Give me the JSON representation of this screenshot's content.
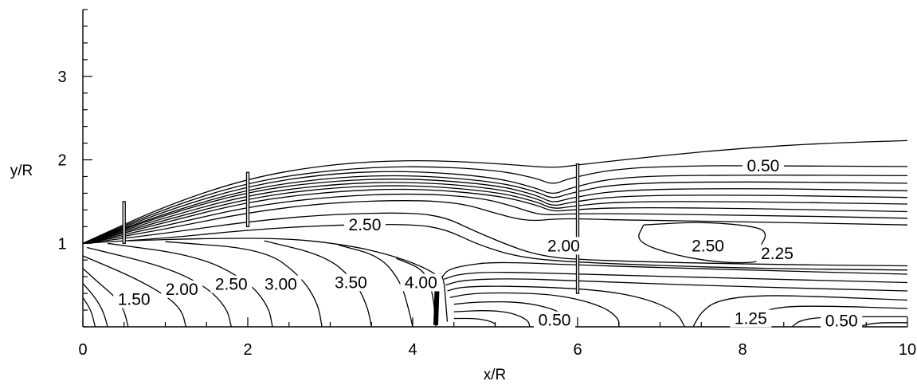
{
  "chart_data": {
    "type": "contour",
    "xlabel": "x/R",
    "ylabel": "y/R",
    "xlim": [
      0,
      10
    ],
    "ylim": [
      0,
      3.8
    ],
    "x_ticks": [
      0,
      2,
      4,
      6,
      8,
      10
    ],
    "y_ticks": [
      1,
      2,
      3
    ],
    "x_tick_labels": [
      "0",
      "2",
      "4",
      "6",
      "8",
      "10"
    ],
    "y_tick_labels": [
      "1",
      "2",
      "3"
    ],
    "grid": false,
    "contour_labels": [
      {
        "text": "0.50",
        "x": 8.25,
        "y": 1.93
      },
      {
        "text": "2.50",
        "x": 3.42,
        "y": 1.22
      },
      {
        "text": "2.00",
        "x": 5.83,
        "y": 0.97
      },
      {
        "text": "2.50",
        "x": 7.58,
        "y": 0.97
      },
      {
        "text": "2.25",
        "x": 8.42,
        "y": 0.88
      },
      {
        "text": "1.50",
        "x": 0.62,
        "y": 0.33
      },
      {
        "text": "2.00",
        "x": 1.2,
        "y": 0.45
      },
      {
        "text": "2.50",
        "x": 1.8,
        "y": 0.51
      },
      {
        "text": "3.00",
        "x": 2.4,
        "y": 0.51
      },
      {
        "text": "3.50",
        "x": 3.25,
        "y": 0.53
      },
      {
        "text": "4.00",
        "x": 4.1,
        "y": 0.53
      },
      {
        "text": "0.50",
        "x": 5.72,
        "y": 0.08
      },
      {
        "text": "1.25",
        "x": 8.1,
        "y": 0.1
      },
      {
        "text": "0.50",
        "x": 9.2,
        "y": 0.07
      }
    ],
    "contour_lines": [
      [
        [
          0,
          1
        ],
        [
          1,
          1.45
        ],
        [
          2,
          1.78
        ],
        [
          3,
          1.95
        ],
        [
          4,
          2.0
        ],
        [
          5,
          1.96
        ],
        [
          5.7,
          1.9
        ],
        [
          6,
          1.94
        ],
        [
          7,
          2.05
        ],
        [
          8,
          2.14
        ],
        [
          9,
          2.2
        ],
        [
          10,
          2.23
        ]
      ],
      [
        [
          0,
          1
        ],
        [
          1,
          1.42
        ],
        [
          2,
          1.73
        ],
        [
          3,
          1.88
        ],
        [
          4,
          1.93
        ],
        [
          5,
          1.88
        ],
        [
          5.5,
          1.78
        ],
        [
          5.7,
          1.7
        ],
        [
          5.9,
          1.78
        ],
        [
          6.5,
          1.9
        ],
        [
          7.5,
          1.93
        ],
        [
          8,
          1.93
        ],
        [
          10,
          1.92
        ]
      ],
      [
        [
          0,
          1
        ],
        [
          1,
          1.39
        ],
        [
          2,
          1.69
        ],
        [
          3,
          1.84
        ],
        [
          4,
          1.87
        ],
        [
          5,
          1.79
        ],
        [
          5.5,
          1.66
        ],
        [
          5.7,
          1.58
        ],
        [
          5.9,
          1.66
        ],
        [
          6.5,
          1.8
        ],
        [
          8,
          1.82
        ],
        [
          10,
          1.81
        ]
      ],
      [
        [
          0,
          1
        ],
        [
          1,
          1.36
        ],
        [
          2,
          1.65
        ],
        [
          3,
          1.79
        ],
        [
          4,
          1.82
        ],
        [
          5,
          1.74
        ],
        [
          5.5,
          1.62
        ],
        [
          5.7,
          1.53
        ],
        [
          5.9,
          1.6
        ],
        [
          6.5,
          1.72
        ],
        [
          8,
          1.74
        ],
        [
          10,
          1.72
        ]
      ],
      [
        [
          0,
          1
        ],
        [
          1,
          1.34
        ],
        [
          2,
          1.62
        ],
        [
          3,
          1.75
        ],
        [
          4,
          1.78
        ],
        [
          5,
          1.7
        ],
        [
          5.5,
          1.58
        ],
        [
          5.7,
          1.48
        ],
        [
          5.9,
          1.54
        ],
        [
          6.5,
          1.64
        ],
        [
          8,
          1.66
        ],
        [
          10,
          1.63
        ]
      ],
      [
        [
          0,
          1
        ],
        [
          1,
          1.31
        ],
        [
          2,
          1.58
        ],
        [
          3,
          1.71
        ],
        [
          4,
          1.74
        ],
        [
          5,
          1.66
        ],
        [
          5.5,
          1.54
        ],
        [
          5.7,
          1.44
        ],
        [
          5.9,
          1.49
        ],
        [
          6.5,
          1.57
        ],
        [
          8,
          1.58
        ],
        [
          10,
          1.55
        ]
      ],
      [
        [
          0,
          1
        ],
        [
          1,
          1.28
        ],
        [
          2,
          1.54
        ],
        [
          3,
          1.67
        ],
        [
          4,
          1.7
        ],
        [
          5,
          1.62
        ],
        [
          5.5,
          1.5
        ],
        [
          5.7,
          1.41
        ],
        [
          5.9,
          1.44
        ],
        [
          6.5,
          1.5
        ],
        [
          8,
          1.5
        ],
        [
          10,
          1.47
        ]
      ],
      [
        [
          0,
          1
        ],
        [
          1,
          1.25
        ],
        [
          2,
          1.5
        ],
        [
          3,
          1.62
        ],
        [
          4,
          1.66
        ],
        [
          5,
          1.58
        ],
        [
          5.5,
          1.46
        ],
        [
          5.7,
          1.38
        ],
        [
          5.9,
          1.4
        ],
        [
          6.5,
          1.43
        ],
        [
          8,
          1.42
        ],
        [
          10,
          1.38
        ]
      ],
      [
        [
          0,
          1
        ],
        [
          1,
          1.21
        ],
        [
          2,
          1.44
        ],
        [
          3,
          1.56
        ],
        [
          4,
          1.6
        ],
        [
          4.8,
          1.55
        ],
        [
          5.2,
          1.45
        ],
        [
          5.5,
          1.35
        ],
        [
          5.7,
          1.34
        ],
        [
          6,
          1.36
        ],
        [
          8,
          1.34
        ],
        [
          10,
          1.3
        ]
      ],
      [
        [
          0,
          1
        ],
        [
          1,
          1.17
        ],
        [
          2,
          1.37
        ],
        [
          3,
          1.49
        ],
        [
          4,
          1.52
        ],
        [
          4.6,
          1.48
        ],
        [
          5,
          1.36
        ],
        [
          5.4,
          1.26
        ],
        [
          5.8,
          1.3
        ],
        [
          6.5,
          1.28
        ],
        [
          8,
          1.26
        ],
        [
          10,
          1.22
        ]
      ],
      [
        [
          0,
          1
        ],
        [
          1,
          1.12
        ],
        [
          2,
          1.26
        ],
        [
          3,
          1.35
        ],
        [
          4,
          1.37
        ],
        [
          4.4,
          1.31
        ],
        [
          4.7,
          1.17
        ],
        [
          5.1,
          1.0
        ],
        [
          5.5,
          0.86
        ],
        [
          6,
          0.8
        ],
        [
          8,
          0.75
        ],
        [
          10,
          0.73
        ]
      ],
      [
        [
          0,
          1
        ],
        [
          1,
          1.06
        ],
        [
          2,
          1.16
        ],
        [
          3,
          1.22
        ],
        [
          4,
          1.23
        ],
        [
          4.4,
          1.17
        ],
        [
          4.8,
          0.98
        ],
        [
          5.3,
          0.83
        ],
        [
          6,
          0.77
        ],
        [
          8,
          0.7
        ],
        [
          10,
          0.68
        ]
      ],
      [
        [
          6.8,
          1.22
        ],
        [
          7.5,
          1.26
        ],
        [
          8.2,
          1.2
        ],
        [
          8.3,
          1.1
        ],
        [
          8.2,
          0.95
        ],
        [
          8.3,
          0.78
        ],
        [
          7.8,
          0.76
        ],
        [
          7.2,
          0.85
        ],
        [
          6.7,
          1.02
        ],
        [
          6.8,
          1.22
        ]
      ],
      [
        [
          0.55,
          1.03
        ],
        [
          1.5,
          1.06
        ],
        [
          2.5,
          1.06
        ],
        [
          3.2,
          0.98
        ],
        [
          3.7,
          0.87
        ],
        [
          4.1,
          0.73
        ],
        [
          4.33,
          0.6
        ]
      ],
      [
        [
          0,
          0.7
        ],
        [
          0.2,
          0.52
        ],
        [
          0.4,
          0.35
        ],
        [
          0.5,
          0.2
        ],
        [
          0.55,
          0
        ]
      ],
      [
        [
          0,
          0.52
        ],
        [
          0.15,
          0.35
        ],
        [
          0.25,
          0.18
        ],
        [
          0.3,
          0
        ]
      ],
      [
        [
          0,
          0.35
        ],
        [
          0.1,
          0.2
        ],
        [
          0.15,
          0
        ]
      ],
      [
        [
          0,
          0.85
        ],
        [
          0.6,
          0.6
        ],
        [
          1.0,
          0.38
        ],
        [
          1.2,
          0.2
        ],
        [
          1.25,
          0
        ]
      ],
      [
        [
          0.05,
          0.95
        ],
        [
          1.0,
          0.72
        ],
        [
          1.5,
          0.48
        ],
        [
          1.75,
          0.22
        ],
        [
          1.8,
          0
        ]
      ],
      [
        [
          0.3,
          1.0
        ],
        [
          1.4,
          0.85
        ],
        [
          2.0,
          0.55
        ],
        [
          2.25,
          0.25
        ],
        [
          2.3,
          0
        ]
      ],
      [
        [
          1.0,
          1.02
        ],
        [
          2.2,
          0.93
        ],
        [
          2.65,
          0.6
        ],
        [
          2.85,
          0.28
        ],
        [
          2.9,
          0
        ]
      ],
      [
        [
          2.2,
          1.03
        ],
        [
          2.95,
          0.85
        ],
        [
          3.3,
          0.55
        ],
        [
          3.45,
          0.25
        ],
        [
          3.5,
          0
        ]
      ],
      [
        [
          3.1,
          0.98
        ],
        [
          3.6,
          0.85
        ],
        [
          3.85,
          0.55
        ],
        [
          3.95,
          0.22
        ],
        [
          4.0,
          0
        ]
      ],
      [
        [
          3.8,
          0.82
        ],
        [
          4.15,
          0.68
        ],
        [
          4.25,
          0.38
        ],
        [
          4.28,
          0
        ]
      ],
      [
        [
          4.33,
          0.64
        ],
        [
          4.38,
          0.56
        ],
        [
          4.4,
          0.3
        ],
        [
          4.42,
          0.06
        ]
      ],
      [
        [
          4.36,
          0.6
        ],
        [
          4.42,
          0.68
        ],
        [
          4.6,
          0.73
        ],
        [
          5.0,
          0.78
        ],
        [
          6,
          0.74
        ],
        [
          8,
          0.68
        ],
        [
          10,
          0.63
        ]
      ],
      [
        [
          4.38,
          0.57
        ],
        [
          4.55,
          0.63
        ],
        [
          5.0,
          0.66
        ],
        [
          6,
          0.63
        ],
        [
          8,
          0.58
        ],
        [
          10,
          0.53
        ]
      ],
      [
        [
          4.4,
          0.5
        ],
        [
          4.6,
          0.56
        ],
        [
          5.2,
          0.58
        ],
        [
          6,
          0.55
        ],
        [
          8,
          0.48
        ],
        [
          10,
          0.43
        ]
      ],
      [
        [
          4.42,
          0.43
        ],
        [
          4.6,
          0.48
        ],
        [
          5.2,
          0.49
        ],
        [
          6.2,
          0.45
        ],
        [
          6.8,
          0.35
        ],
        [
          7.2,
          0.18
        ],
        [
          7.3,
          0
        ]
      ],
      [
        [
          4.45,
          0.35
        ],
        [
          4.7,
          0.4
        ],
        [
          5.2,
          0.41
        ],
        [
          5.8,
          0.38
        ],
        [
          6.3,
          0.25
        ],
        [
          6.5,
          0.1
        ],
        [
          6.5,
          0
        ]
      ],
      [
        [
          4.5,
          0.27
        ],
        [
          4.8,
          0.3
        ],
        [
          5.3,
          0.3
        ],
        [
          5.7,
          0.22
        ],
        [
          5.9,
          0.1
        ],
        [
          5.95,
          0
        ]
      ],
      [
        [
          4.5,
          0.18
        ],
        [
          4.9,
          0.2
        ],
        [
          5.2,
          0.17
        ],
        [
          5.4,
          0.08
        ],
        [
          5.42,
          0
        ]
      ],
      [
        [
          4.5,
          0.1
        ],
        [
          4.8,
          0.1
        ],
        [
          5.0,
          0.05
        ],
        [
          5.0,
          0
        ]
      ],
      [
        [
          7.4,
          0
        ],
        [
          7.5,
          0.18
        ],
        [
          7.7,
          0.32
        ],
        [
          8.2,
          0.38
        ],
        [
          9,
          0.36
        ],
        [
          10,
          0.32
        ]
      ],
      [
        [
          8.0,
          0
        ],
        [
          8.1,
          0.12
        ],
        [
          8.4,
          0.24
        ],
        [
          9,
          0.25
        ],
        [
          10,
          0.22
        ]
      ],
      [
        [
          8.6,
          0
        ],
        [
          8.7,
          0.08
        ],
        [
          9,
          0.12
        ],
        [
          10,
          0.12
        ]
      ],
      [
        [
          9.4,
          0
        ],
        [
          9.6,
          0.05
        ],
        [
          10,
          0.05
        ]
      ]
    ]
  }
}
